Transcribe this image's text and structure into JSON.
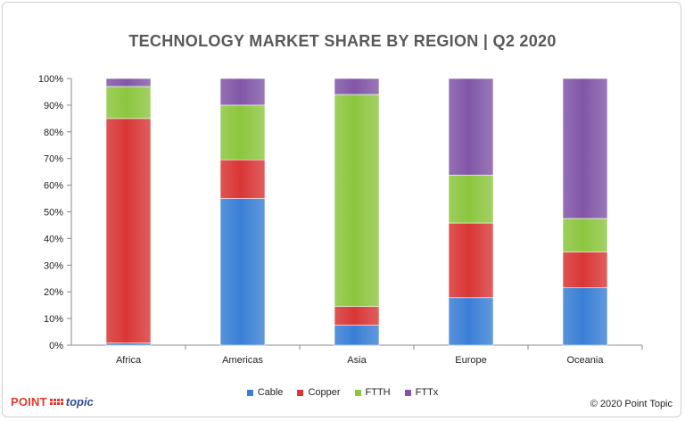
{
  "chart_data": {
    "type": "bar",
    "stacked": true,
    "title": "TECHNOLOGY MARKET SHARE BY REGION | Q2 2020",
    "categories": [
      "Africa",
      "Americas",
      "Asia",
      "Europe",
      "Oceania"
    ],
    "series": [
      {
        "name": "Cable",
        "color": "#3a7fd5",
        "values": [
          0.8,
          55,
          7.5,
          17.8,
          21.5
        ]
      },
      {
        "name": "Copper",
        "color": "#d93636",
        "values": [
          84.2,
          14.5,
          7,
          28,
          13.5
        ]
      },
      {
        "name": "FTTH",
        "color": "#8cc63f",
        "values": [
          12,
          20.5,
          79.5,
          18,
          12.5
        ]
      },
      {
        "name": "FTTx",
        "color": "#8156a7",
        "values": [
          3,
          10,
          6,
          36.2,
          52.5
        ]
      }
    ],
    "ylim": [
      0,
      100
    ],
    "yticks": [
      "0%",
      "10%",
      "20%",
      "30%",
      "40%",
      "50%",
      "60%",
      "70%",
      "80%",
      "90%",
      "100%"
    ],
    "grid": false,
    "legend": "bottom"
  },
  "footer": {
    "brand_point": "POINT",
    "brand_topic": "topic",
    "copyright": "© 2020 Point Topic"
  }
}
